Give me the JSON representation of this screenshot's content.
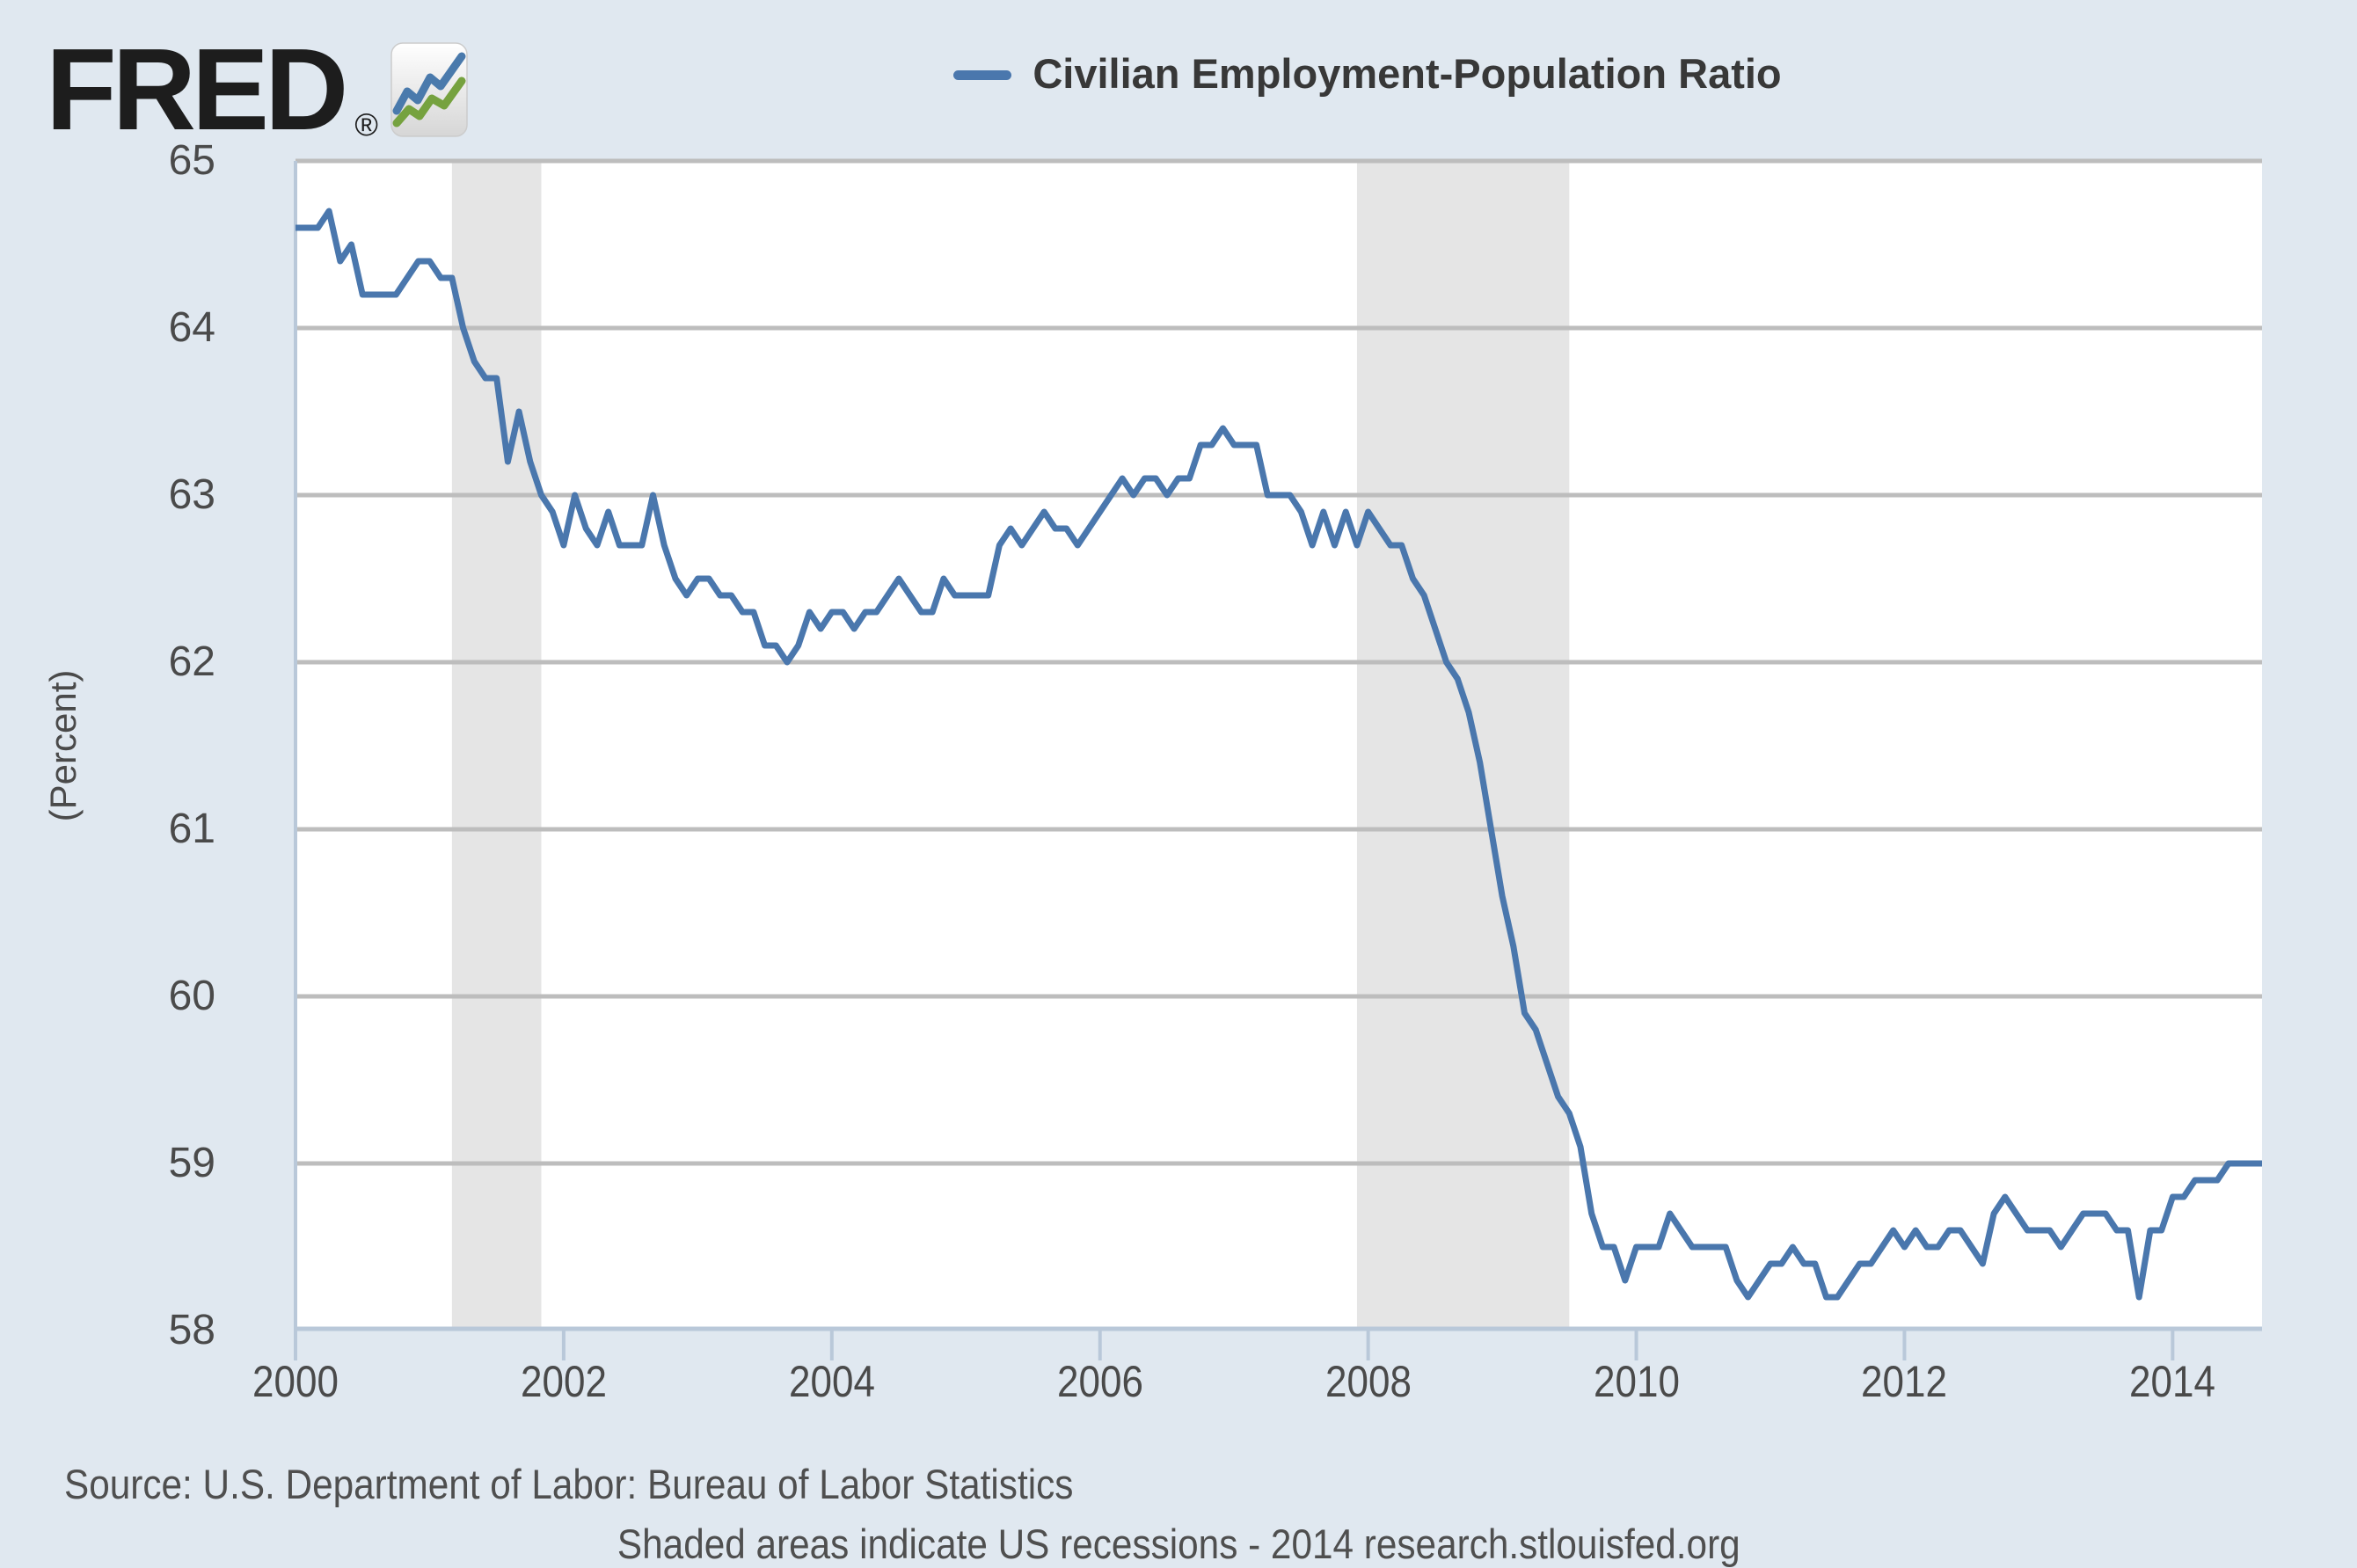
{
  "header": {
    "logo_text": "FRED",
    "registered_mark": "®",
    "logo_icon": "fred-sparkline-logo-icon"
  },
  "legend": {
    "label": "Civilian Employment-Population Ratio",
    "line_color": "#4a77ad"
  },
  "y_axis": {
    "title": "(Percent)",
    "ticks": [
      65,
      64,
      63,
      62,
      61,
      60,
      59,
      58
    ],
    "min": 58,
    "max": 65
  },
  "x_axis": {
    "ticks": [
      2000,
      2002,
      2004,
      2006,
      2008,
      2010,
      2012,
      2014
    ]
  },
  "footer": {
    "source_line": "Source: U.S. Department of Labor: Bureau of Labor Statistics",
    "note_line": "Shaded areas indicate US recessions - 2014 research.stlouisfed.org"
  },
  "chart_data": {
    "type": "line",
    "title": "Civilian Employment-Population Ratio",
    "ylabel": "(Percent)",
    "frequency": "monthly",
    "start": "2000-01",
    "end": "2014-09",
    "x_domain": [
      2000.0,
      2014.6667
    ],
    "ylim": [
      58,
      65
    ],
    "yticks": [
      58,
      59,
      60,
      61,
      62,
      63,
      64,
      65
    ],
    "xticks": [
      2000,
      2002,
      2004,
      2006,
      2008,
      2010,
      2012,
      2014
    ],
    "grid": true,
    "legend_position": "top-center",
    "recessions": [
      {
        "start": 2001.1667,
        "end": 2001.8333
      },
      {
        "start": 2007.9167,
        "end": 2009.5
      }
    ],
    "colors": {
      "line": "#4a77ad",
      "grid": "#bdbdbd",
      "frame": "#b9c8d9",
      "recession": "#e5e5e5",
      "plot_bg": "#ffffff",
      "page_bg": "#e0e8f0"
    },
    "values": [
      64.6,
      64.6,
      64.6,
      64.7,
      64.4,
      64.5,
      64.2,
      64.2,
      64.2,
      64.2,
      64.3,
      64.4,
      64.4,
      64.3,
      64.3,
      64.0,
      63.8,
      63.7,
      63.7,
      63.2,
      63.5,
      63.2,
      63.0,
      62.9,
      62.7,
      63.0,
      62.8,
      62.7,
      62.9,
      62.7,
      62.7,
      62.7,
      63.0,
      62.7,
      62.5,
      62.4,
      62.5,
      62.5,
      62.4,
      62.4,
      62.3,
      62.3,
      62.1,
      62.1,
      62.0,
      62.1,
      62.3,
      62.2,
      62.3,
      62.3,
      62.2,
      62.3,
      62.3,
      62.4,
      62.5,
      62.4,
      62.3,
      62.3,
      62.5,
      62.4,
      62.4,
      62.4,
      62.4,
      62.7,
      62.8,
      62.7,
      62.8,
      62.9,
      62.8,
      62.8,
      62.7,
      62.8,
      62.9,
      63.0,
      63.1,
      63.0,
      63.1,
      63.1,
      63.0,
      63.1,
      63.1,
      63.3,
      63.3,
      63.4,
      63.3,
      63.3,
      63.3,
      63.0,
      63.0,
      63.0,
      62.9,
      62.7,
      62.9,
      62.7,
      62.9,
      62.7,
      62.9,
      62.8,
      62.7,
      62.7,
      62.5,
      62.4,
      62.2,
      62.0,
      61.9,
      61.7,
      61.4,
      61.0,
      60.6,
      60.3,
      59.9,
      59.8,
      59.6,
      59.4,
      59.3,
      59.1,
      58.7,
      58.5,
      58.5,
      58.3,
      58.5,
      58.5,
      58.5,
      58.7,
      58.6,
      58.5,
      58.5,
      58.5,
      58.5,
      58.3,
      58.2,
      58.3,
      58.4,
      58.4,
      58.5,
      58.4,
      58.4,
      58.2,
      58.2,
      58.3,
      58.4,
      58.4,
      58.5,
      58.6,
      58.5,
      58.6,
      58.5,
      58.5,
      58.6,
      58.6,
      58.5,
      58.4,
      58.7,
      58.8,
      58.7,
      58.6,
      58.6,
      58.6,
      58.5,
      58.6,
      58.7,
      58.7,
      58.7,
      58.6,
      58.6,
      58.2,
      58.6,
      58.6,
      58.8,
      58.8,
      58.9,
      58.9,
      58.9,
      59.0,
      59.0,
      59.0,
      59.0
    ]
  }
}
